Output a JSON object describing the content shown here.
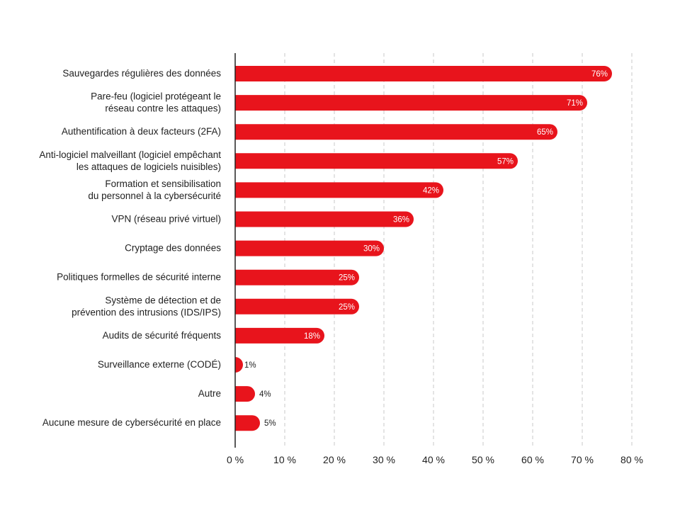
{
  "chart_data": {
    "type": "bar",
    "orientation": "horizontal",
    "title": "",
    "xlabel": "",
    "ylabel": "",
    "xlim": [
      0,
      80
    ],
    "ticks": [
      0,
      10,
      20,
      30,
      40,
      50,
      60,
      70,
      80
    ],
    "tick_labels": [
      "0 %",
      "10 %",
      "20 %",
      "30 %",
      "40 %",
      "50 %",
      "60 %",
      "70 %",
      "80 %"
    ],
    "grid": "vertical-dashed",
    "bar_color": "#e8141c",
    "categories": [
      [
        "Sauvegardes régulières des données"
      ],
      [
        "Pare-feu (logiciel protégeant le",
        "réseau contre les attaques)"
      ],
      [
        "Authentification à deux facteurs (2FA)"
      ],
      [
        "Anti-logiciel malveillant (logiciel empêchant",
        "les attaques de logiciels nuisibles)"
      ],
      [
        "Formation et sensibilisation",
        "du personnel à la cybersécurité"
      ],
      [
        "VPN (réseau privé virtuel)"
      ],
      [
        "Cryptage des données"
      ],
      [
        "Politiques formelles de sécurité interne"
      ],
      [
        "Système de détection et de",
        "prévention des intrusions (IDS/IPS)"
      ],
      [
        "Audits de sécurité fréquents"
      ],
      [
        "Surveillance externe (CODÉ)"
      ],
      [
        "Autre"
      ],
      [
        "Aucune mesure de cybersécurité en place"
      ]
    ],
    "values": [
      76,
      71,
      65,
      57,
      42,
      36,
      30,
      25,
      25,
      18,
      1,
      4,
      5
    ],
    "value_labels": [
      "76%",
      "71%",
      "65%",
      "57%",
      "42%",
      "36%",
      "30%",
      "25%",
      "25%",
      "18%",
      "1%",
      "4%",
      "5%"
    ]
  }
}
